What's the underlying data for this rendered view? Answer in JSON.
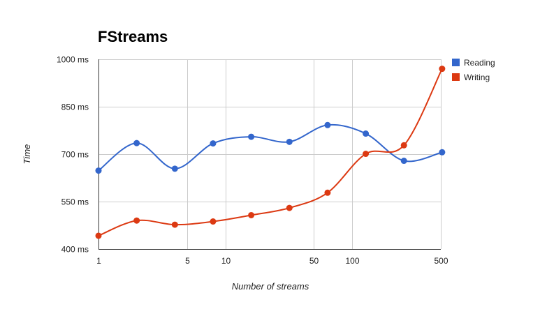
{
  "chart_data": {
    "type": "line",
    "title": "FStreams",
    "xlabel": "Number of streams",
    "ylabel": "Time",
    "x_scale": "log",
    "xlim": [
      1,
      500
    ],
    "ylim": [
      400,
      1000
    ],
    "x_ticks": [
      {
        "value": 1,
        "label": "1"
      },
      {
        "value": 5,
        "label": "5"
      },
      {
        "value": 10,
        "label": "10"
      },
      {
        "value": 50,
        "label": "50"
      },
      {
        "value": 100,
        "label": "100"
      },
      {
        "value": 500,
        "label": "500"
      }
    ],
    "y_ticks": [
      {
        "value": 400,
        "label": "400 ms"
      },
      {
        "value": 550,
        "label": "550 ms"
      },
      {
        "value": 700,
        "label": "700 ms"
      },
      {
        "value": 850,
        "label": "850 ms"
      },
      {
        "value": 1000,
        "label": "1000 ms"
      }
    ],
    "grid": true,
    "legend_position": "right",
    "x": [
      1,
      2,
      4,
      8,
      16,
      32,
      64,
      128,
      256,
      512
    ],
    "series": [
      {
        "name": "Reading",
        "color": "#3366cc",
        "values": [
          648,
          735,
          654,
          734,
          755,
          739,
          792,
          765,
          679,
          706
        ]
      },
      {
        "name": "Writing",
        "color": "#dc3912",
        "values": [
          442,
          490,
          477,
          487,
          507,
          530,
          578,
          701,
          728,
          970
        ]
      }
    ]
  }
}
